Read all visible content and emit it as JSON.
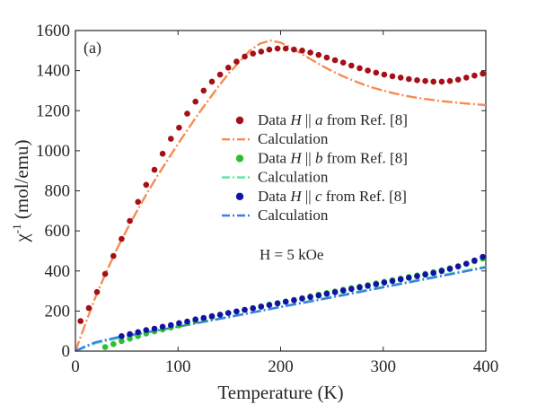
{
  "chart_data": {
    "type": "scatter",
    "panel_label": "(a)",
    "xlabel": "Temperature (K)",
    "ylabel": {
      "base": "χ",
      "sup": "-1",
      "rest": " (mol/emu)"
    },
    "xlim": [
      0,
      400
    ],
    "ylim": [
      0,
      1600
    ],
    "xticks": [
      0,
      100,
      200,
      300,
      400
    ],
    "yticks": [
      0,
      200,
      400,
      600,
      800,
      1000,
      1200,
      1400,
      1600
    ],
    "grid": false,
    "legend_position": "right-middle",
    "annotation": "H = 5 kOe",
    "colors": {
      "data_a": "#a50f15",
      "calc_a": "#f58d51",
      "data_b": "#2ebd2e",
      "calc_b": "#55e8a0",
      "data_c": "#1212a8",
      "calc_c": "#3c7fe6"
    },
    "legend": [
      {
        "kind": "marker",
        "color_key": "data_a",
        "pre": "Data ",
        "h": "H",
        "par": " || ",
        "axis": "a",
        "post": " from Ref. [8]"
      },
      {
        "kind": "line",
        "color_key": "calc_a",
        "text": "Calculation"
      },
      {
        "kind": "marker",
        "color_key": "data_b",
        "pre": "Data ",
        "h": "H",
        "par": " || ",
        "axis": "b",
        "post": " from Ref. [8]"
      },
      {
        "kind": "line",
        "color_key": "calc_b",
        "text": "Calculation"
      },
      {
        "kind": "marker",
        "color_key": "data_c",
        "pre": "Data ",
        "h": "H",
        "par": " || ",
        "axis": "c",
        "post": " from Ref. [8]"
      },
      {
        "kind": "line",
        "color_key": "calc_c",
        "text": "Calculation"
      }
    ],
    "series": [
      {
        "name": "Data H || a from Ref. [8]",
        "kind": "scatter",
        "color_key": "data_a",
        "x": [
          5,
          13,
          21,
          29,
          37,
          45,
          53,
          61,
          69,
          77,
          85,
          93,
          101,
          109,
          117,
          125,
          133,
          141,
          149,
          157,
          165,
          173,
          181,
          189,
          197,
          205,
          213,
          221,
          229,
          237,
          245,
          253,
          261,
          269,
          277,
          285,
          293,
          301,
          309,
          317,
          325,
          333,
          341,
          349,
          357,
          365,
          373,
          381,
          389,
          397
        ],
        "y": [
          150,
          215,
          295,
          385,
          475,
          560,
          650,
          745,
          830,
          905,
          985,
          1060,
          1115,
          1185,
          1245,
          1300,
          1345,
          1380,
          1415,
          1445,
          1470,
          1485,
          1495,
          1505,
          1510,
          1510,
          1505,
          1500,
          1490,
          1478,
          1465,
          1452,
          1440,
          1425,
          1412,
          1400,
          1390,
          1380,
          1372,
          1365,
          1358,
          1352,
          1348,
          1345,
          1345,
          1348,
          1355,
          1365,
          1375,
          1385
        ]
      },
      {
        "name": "Calculation",
        "kind": "line",
        "color_key": "calc_a",
        "x": [
          0,
          10,
          20,
          30,
          40,
          50,
          60,
          70,
          80,
          90,
          100,
          110,
          120,
          130,
          140,
          150,
          160,
          170,
          180,
          190,
          200,
          210,
          220,
          230,
          240,
          250,
          260,
          270,
          280,
          290,
          300,
          310,
          320,
          330,
          340,
          350,
          360,
          370,
          380,
          390,
          400
        ],
        "y": [
          0,
          140,
          275,
          395,
          505,
          605,
          700,
          790,
          875,
          955,
          1035,
          1110,
          1185,
          1255,
          1325,
          1390,
          1445,
          1500,
          1535,
          1550,
          1540,
          1515,
          1485,
          1455,
          1425,
          1398,
          1373,
          1352,
          1332,
          1315,
          1300,
          1287,
          1276,
          1267,
          1259,
          1252,
          1246,
          1241,
          1236,
          1232,
          1228
        ]
      },
      {
        "name": "Data H || b from Ref. [8]",
        "kind": "scatter",
        "color_key": "data_b",
        "x": [
          29,
          37,
          45,
          53,
          61,
          69,
          77,
          85,
          93,
          101,
          109,
          117,
          125,
          133,
          141,
          149,
          157,
          165,
          173,
          181,
          189,
          197,
          205,
          213,
          221,
          229,
          237,
          245,
          253,
          261,
          269,
          277,
          285,
          293,
          301,
          309,
          317,
          325,
          333,
          341,
          349,
          357,
          365,
          373,
          381,
          389,
          397
        ],
        "y": [
          20,
          35,
          50,
          62,
          75,
          88,
          98,
          108,
          118,
          128,
          140,
          150,
          160,
          170,
          180,
          190,
          198,
          206,
          215,
          224,
          232,
          240,
          248,
          256,
          265,
          273,
          282,
          290,
          298,
          306,
          314,
          322,
          330,
          338,
          346,
          354,
          362,
          370,
          378,
          386,
          394,
          404,
          414,
          424,
          436,
          448,
          462
        ]
      },
      {
        "name": "Calculation",
        "kind": "line",
        "color_key": "calc_b",
        "x": [
          0,
          10,
          20,
          40,
          60,
          80,
          100,
          150,
          200,
          250,
          300,
          350,
          400
        ],
        "y": [
          0,
          20,
          40,
          62,
          82,
          102,
          122,
          172,
          222,
          272,
          322,
          372,
          422
        ]
      },
      {
        "name": "Data H || c from Ref. [8]",
        "kind": "scatter",
        "color_key": "data_c",
        "x": [
          45,
          53,
          61,
          69,
          77,
          85,
          93,
          101,
          109,
          117,
          125,
          133,
          141,
          149,
          157,
          165,
          173,
          181,
          189,
          197,
          205,
          213,
          221,
          229,
          237,
          245,
          253,
          261,
          269,
          277,
          285,
          293,
          301,
          309,
          317,
          325,
          333,
          341,
          349,
          357,
          365,
          373,
          381,
          389,
          397
        ],
        "y": [
          75,
          85,
          95,
          105,
          112,
          122,
          130,
          140,
          148,
          158,
          166,
          175,
          182,
          190,
          198,
          206,
          214,
          222,
          230,
          238,
          246,
          254,
          262,
          270,
          278,
          286,
          294,
          302,
          310,
          318,
          326,
          334,
          342,
          350,
          358,
          366,
          374,
          382,
          390,
          400,
          410,
          422,
          436,
          452,
          470
        ]
      },
      {
        "name": "Calculation",
        "kind": "line",
        "color_key": "calc_c",
        "x": [
          0,
          10,
          20,
          40,
          60,
          80,
          100,
          150,
          200,
          250,
          300,
          350,
          400
        ],
        "y": [
          0,
          25,
          45,
          68,
          86,
          104,
          122,
          170,
          220,
          268,
          318,
          368,
          418
        ]
      }
    ]
  }
}
